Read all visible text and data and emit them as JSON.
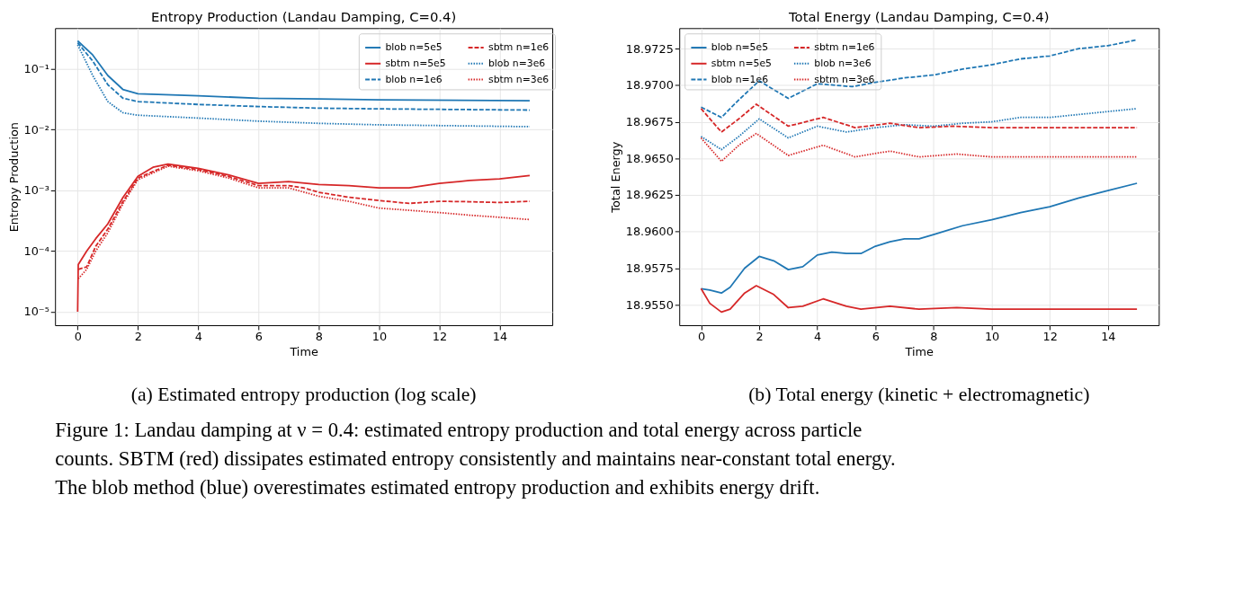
{
  "chart_data": [
    {
      "type": "line",
      "title": "Entropy Production (Landau Damping, C=0.4)",
      "xlabel": "Time",
      "ylabel": "Entropy Production",
      "log": true,
      "grid": true,
      "legend": "top right",
      "marker": "none",
      "xlim": [
        -0.75,
        15.75
      ],
      "xticks": [
        0,
        2,
        4,
        6,
        8,
        10,
        12,
        14
      ],
      "ylim": [
        6e-06,
        0.47
      ],
      "yticks": [
        {
          "value": 1e-05,
          "label": "10⁻⁵"
        },
        {
          "value": 0.0001,
          "label": "10⁻⁴"
        },
        {
          "value": 0.001,
          "label": "10⁻³"
        },
        {
          "value": 0.01,
          "label": "10⁻²"
        },
        {
          "value": 0.1,
          "label": "10⁻¹"
        }
      ],
      "annotations": [
        "(a) Estimated entropy production (log scale)",
        "Figure 1: Landau damping at ν = 0.4: estimated entropy production and total energy across particle counts. SBTM (red) dissipates estimated entropy consistently and maintains near-constant total energy. The blob method (blue) overestimates estimated entropy production and exhibits energy drift."
      ],
      "series": [
        {
          "name": "blob n=5e5",
          "color": "#1f77b4",
          "line_style": "solid",
          "x": [
            0,
            0.5,
            1,
            1.5,
            2,
            4,
            6,
            8,
            10,
            15
          ],
          "values": [
            0.29,
            0.17,
            0.078,
            0.046,
            0.039,
            0.036,
            0.033,
            0.032,
            0.031,
            0.03
          ]
        },
        {
          "name": "blob n=1e6",
          "color": "#1f77b4",
          "line_style": "dashed",
          "x": [
            0,
            0.5,
            1,
            1.5,
            2,
            4,
            6,
            8,
            10,
            15
          ],
          "values": [
            0.27,
            0.135,
            0.055,
            0.033,
            0.029,
            0.026,
            0.024,
            0.0226,
            0.022,
            0.021
          ]
        },
        {
          "name": "blob n=3e6",
          "color": "#1f77b4",
          "line_style": "dotted",
          "x": [
            0,
            0.5,
            1,
            1.5,
            2,
            4,
            6,
            8,
            10,
            15
          ],
          "values": [
            0.25,
            0.078,
            0.029,
            0.019,
            0.0173,
            0.0155,
            0.0138,
            0.0127,
            0.012,
            0.0112
          ]
        },
        {
          "name": "sbtm n=5e5",
          "color": "#d62728",
          "line_style": "solid",
          "x": [
            0,
            0.02,
            0.3,
            0.6,
            1,
            1.5,
            2,
            2.5,
            3,
            4,
            5,
            6,
            7,
            8,
            9,
            10,
            11,
            12,
            13,
            14,
            15
          ],
          "values": [
            1e-05,
            6e-05,
            0.0001,
            0.00016,
            0.00028,
            0.00076,
            0.0017,
            0.0024,
            0.0027,
            0.0023,
            0.0018,
            0.0013,
            0.0014,
            0.00125,
            0.0012,
            0.0011,
            0.0011,
            0.0013,
            0.00145,
            0.00155,
            0.00175
          ]
        },
        {
          "name": "sbtm n=1e6",
          "color": "#d62728",
          "line_style": "dashed",
          "x": [
            0.02,
            0.3,
            0.6,
            1,
            1.5,
            2,
            3,
            4,
            5,
            6,
            7,
            7.5,
            8,
            9,
            10,
            11,
            12,
            13,
            14,
            15
          ],
          "values": [
            5e-05,
            5.5e-05,
            0.00012,
            0.00023,
            0.00065,
            0.0016,
            0.0026,
            0.0022,
            0.0017,
            0.0012,
            0.0012,
            0.0011,
            0.00093,
            0.00077,
            0.00068,
            0.00061,
            0.00066,
            0.00065,
            0.00063,
            0.00066
          ]
        },
        {
          "name": "sbtm n=3e6",
          "color": "#d62728",
          "line_style": "dotted",
          "x": [
            0.02,
            0.3,
            0.6,
            1,
            1.5,
            2,
            3,
            4,
            5,
            6,
            7,
            8,
            9,
            10,
            11,
            12,
            13,
            14,
            15
          ],
          "values": [
            3.5e-05,
            5e-05,
            0.0001,
            0.0002,
            0.0006,
            0.0015,
            0.0025,
            0.0021,
            0.0016,
            0.0011,
            0.0011,
            0.0008,
            0.00066,
            0.00051,
            0.00047,
            0.00043,
            0.00039,
            0.00036,
            0.00033
          ]
        }
      ]
    },
    {
      "type": "line",
      "title": "Total Energy (Landau Damping, C=0.4)",
      "xlabel": "Time",
      "ylabel": "Total Energy",
      "grid": true,
      "legend": "top left",
      "marker": "none",
      "xlim": [
        -0.75,
        15.75
      ],
      "xticks": [
        0,
        2,
        4,
        6,
        8,
        10,
        12,
        14
      ],
      "ylim": [
        18.9536,
        18.9739
      ],
      "yticks": [
        {
          "value": 18.955,
          "label": "18.9550"
        },
        18.9575,
        {
          "value": 18.96,
          "label": "18.9600"
        },
        18.9625,
        {
          "value": 18.965,
          "label": "18.9650"
        },
        18.9675,
        {
          "value": 18.97,
          "label": "18.9700"
        },
        18.9725
      ],
      "annotations": [
        "(b) Total energy (kinetic + electromagnetic)"
      ],
      "series": [
        {
          "name": "blob n=5e5",
          "color": "#1f77b4",
          "line_style": "solid",
          "x": [
            0,
            0.3,
            0.7,
            1,
            1.5,
            2,
            2.5,
            3,
            3.5,
            4,
            4.5,
            5,
            5.5,
            6,
            6.5,
            7,
            7.5,
            8,
            9,
            10,
            11,
            12,
            13,
            14,
            15
          ],
          "values": [
            18.9561,
            18.956,
            18.9558,
            18.9562,
            18.9575,
            18.9583,
            18.958,
            18.9574,
            18.9576,
            18.9584,
            18.9586,
            18.9585,
            18.9585,
            18.959,
            18.9593,
            18.9595,
            18.9595,
            18.9598,
            18.9604,
            18.9608,
            18.9613,
            18.9617,
            18.9623,
            18.9628,
            18.9633
          ]
        },
        {
          "name": "blob n=1e6",
          "color": "#1f77b4",
          "line_style": "dashed",
          "x": [
            0,
            0.7,
            1.3,
            2,
            3,
            4,
            5.2,
            6,
            7,
            8,
            9,
            10,
            11,
            12,
            13,
            14,
            15
          ],
          "values": [
            18.9685,
            18.9678,
            18.969,
            18.9703,
            18.9691,
            18.9701,
            18.9699,
            18.9702,
            18.9705,
            18.9707,
            18.9711,
            18.9714,
            18.9718,
            18.972,
            18.9725,
            18.9727,
            18.9731
          ]
        },
        {
          "name": "blob n=3e6",
          "color": "#1f77b4",
          "line_style": "dotted",
          "x": [
            0,
            0.7,
            1.3,
            2,
            3,
            4,
            5,
            6,
            7,
            8,
            9,
            10,
            11,
            12,
            13,
            14,
            15
          ],
          "values": [
            18.9665,
            18.9656,
            18.9665,
            18.9677,
            18.9664,
            18.9672,
            18.9668,
            18.9671,
            18.9673,
            18.9672,
            18.9674,
            18.9675,
            18.9678,
            18.9678,
            18.968,
            18.9682,
            18.9684
          ]
        },
        {
          "name": "sbtm n=5e5",
          "color": "#d62728",
          "line_style": "solid",
          "x": [
            0,
            0.3,
            0.7,
            1,
            1.5,
            1.9,
            2.5,
            3,
            3.5,
            4.2,
            5,
            5.5,
            6.5,
            7.5,
            8.8,
            10,
            11,
            12,
            15
          ],
          "values": [
            18.9561,
            18.9551,
            18.9545,
            18.9547,
            18.9558,
            18.9563,
            18.9557,
            18.9548,
            18.9549,
            18.9554,
            18.9549,
            18.9547,
            18.9549,
            18.9547,
            18.9548,
            18.9547,
            18.9547,
            18.9547,
            18.9547
          ]
        },
        {
          "name": "sbtm n=1e6",
          "color": "#d62728",
          "line_style": "dashed",
          "x": [
            0,
            0.7,
            1.3,
            1.9,
            3,
            4.2,
            5.3,
            6.5,
            7.5,
            8.7,
            10,
            11,
            12,
            15
          ],
          "values": [
            18.9684,
            18.9668,
            18.9677,
            18.9687,
            18.9672,
            18.9678,
            18.9671,
            18.9674,
            18.9671,
            18.9672,
            18.9671,
            18.9671,
            18.9671,
            18.9671
          ]
        },
        {
          "name": "sbtm n=3e6",
          "color": "#d62728",
          "line_style": "dotted",
          "x": [
            0,
            0.7,
            1.3,
            1.9,
            3,
            4.2,
            5.3,
            6.5,
            7.5,
            8.8,
            10,
            15
          ],
          "values": [
            18.9664,
            18.9648,
            18.9659,
            18.9667,
            18.9652,
            18.9659,
            18.9651,
            18.9655,
            18.9651,
            18.9653,
            18.9651,
            18.9651
          ]
        }
      ]
    }
  ]
}
